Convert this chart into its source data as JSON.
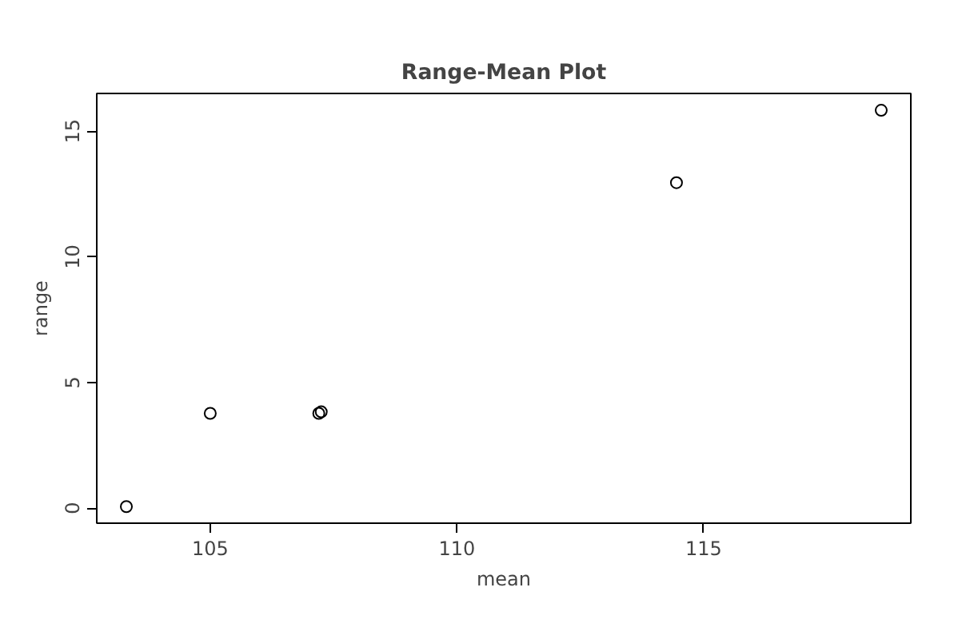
{
  "chart_data": {
    "type": "scatter",
    "title": "Range-Mean Plot",
    "xlabel": "mean",
    "ylabel": "range",
    "x": [
      103.3,
      105.0,
      107.2,
      107.25,
      114.45,
      118.6
    ],
    "series": [
      {
        "color": "#000000",
        "values": [
          0.06,
          3.77,
          3.77,
          3.83,
          12.95,
          15.83
        ]
      }
    ],
    "xlim": [
      102.7,
      119.2
    ],
    "ylim": [
      -0.6,
      16.5
    ],
    "xticks": [
      105,
      110,
      115
    ],
    "yticks": [
      0,
      5,
      10,
      15
    ],
    "marker": "circle",
    "grid": false
  }
}
